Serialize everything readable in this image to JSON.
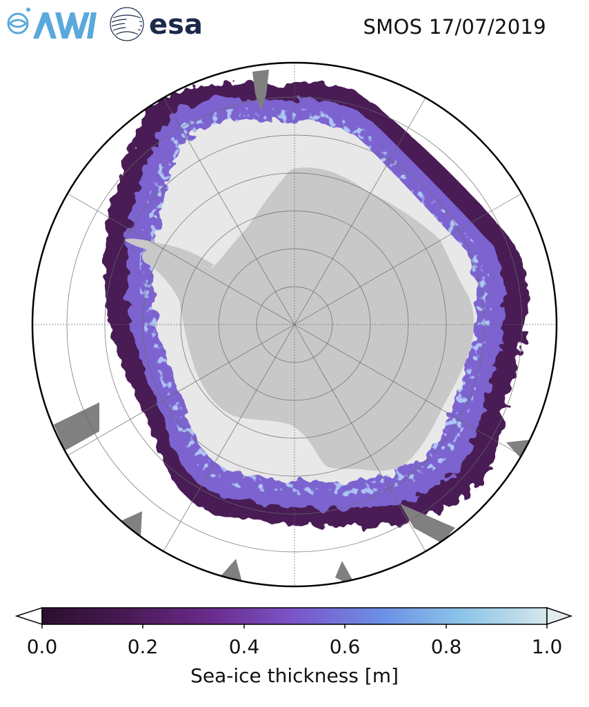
{
  "header": {
    "title": "SMOS 17/07/2019",
    "logo_awi_text": "AWI",
    "logo_esa_text": "esa"
  },
  "map": {
    "projection": "south-polar-stereographic",
    "colors": {
      "land": "#c8c8c8",
      "ocean": "#ffffff",
      "thick_ice": "#e8e8e8",
      "missing_data": "#808080",
      "graticule": "#6a6a6a"
    }
  },
  "colorbar": {
    "label": "Sea-ice thickness [m]",
    "ticks": [
      "0.0",
      "0.2",
      "0.4",
      "0.6",
      "0.8",
      "1.0"
    ],
    "range": [
      0.0,
      1.0
    ],
    "extend": "both",
    "stops": [
      "#2b0f2e",
      "#4a1a55",
      "#6a2a8a",
      "#7b55c9",
      "#6b8fe6",
      "#8cc3e8",
      "#d5e7ea"
    ]
  }
}
